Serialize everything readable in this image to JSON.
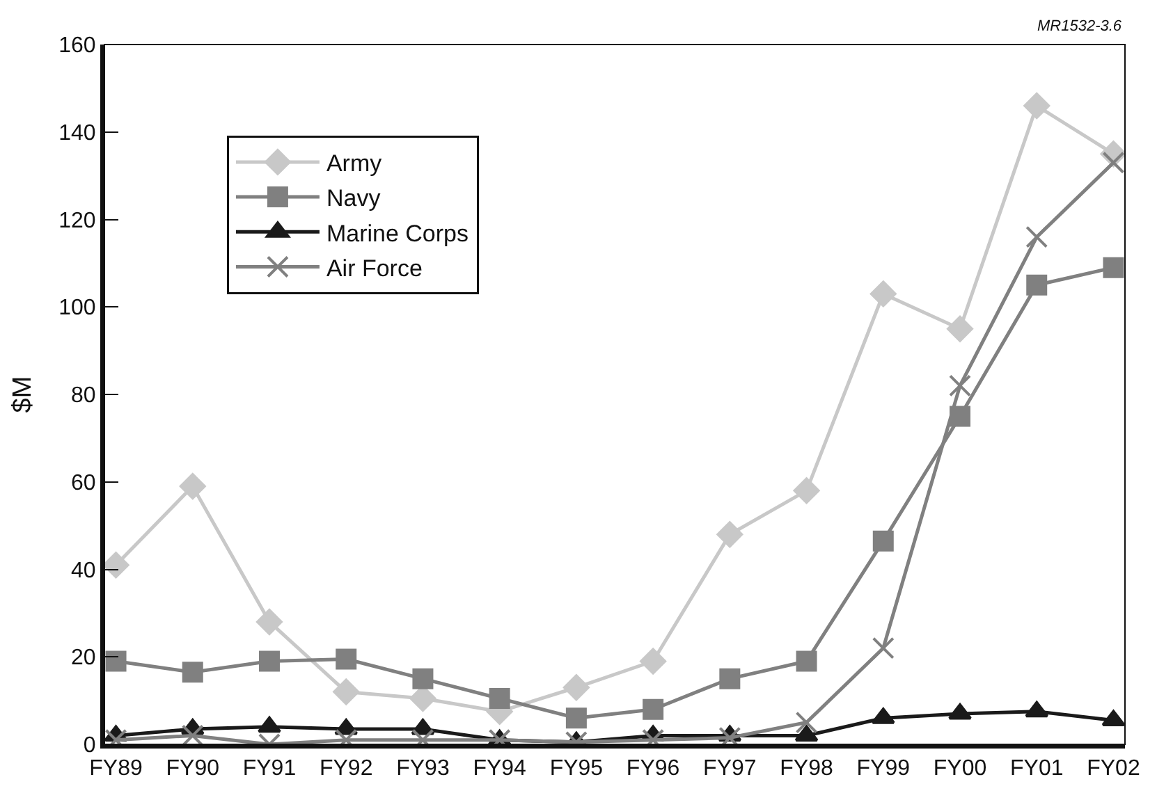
{
  "chart_data": {
    "type": "line",
    "ylabel": "$M",
    "categories": [
      "FY89",
      "FY90",
      "FY91",
      "FY92",
      "FY93",
      "FY94",
      "FY95",
      "FY96",
      "FY97",
      "FY98",
      "FY99",
      "FY00",
      "FY01",
      "FY02"
    ],
    "series": [
      {
        "name": "Army",
        "color": "#c8c8c8",
        "marker": "diamond",
        "values": [
          41,
          59,
          28,
          12,
          10.5,
          7.5,
          13,
          19,
          48,
          58,
          103,
          95,
          146,
          135
        ]
      },
      {
        "name": "Navy",
        "color": "#808080",
        "marker": "square",
        "values": [
          19,
          16.5,
          19,
          19.5,
          15,
          10.5,
          6,
          8,
          15,
          19,
          46.5,
          75,
          105,
          109
        ]
      },
      {
        "name": "Marine Corps",
        "color": "#1a1a1a",
        "marker": "triangle",
        "values": [
          2,
          3.5,
          4,
          3.5,
          3.5,
          1,
          0.5,
          2,
          2,
          2,
          6,
          7,
          7.5,
          5.5
        ]
      },
      {
        "name": "Air Force",
        "color": "#808080",
        "marker": "cross",
        "values": [
          1,
          2,
          0,
          1,
          1,
          1,
          0.5,
          1,
          1.5,
          5,
          22,
          82,
          116,
          133
        ]
      }
    ],
    "ylim": [
      0,
      160
    ],
    "yticks": [
      0,
      20,
      40,
      60,
      80,
      100,
      120,
      140,
      160
    ],
    "legend": "top left",
    "line_style": "solid",
    "annotations": [
      "MR1532-3.6"
    ]
  }
}
